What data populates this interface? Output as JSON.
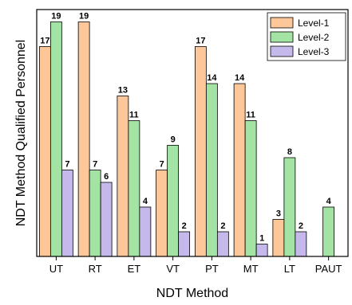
{
  "chart_data": {
    "type": "bar",
    "categories": [
      "UT",
      "RT",
      "ET",
      "VT",
      "PT",
      "MT",
      "LT",
      "PAUT"
    ],
    "series": [
      {
        "name": "Level-1",
        "color": "#fdc79a",
        "values": [
          17,
          19,
          13,
          7,
          17,
          14,
          3,
          null
        ]
      },
      {
        "name": "Level-2",
        "color": "#a3e3a3",
        "values": [
          19,
          7,
          11,
          9,
          14,
          11,
          8,
          4
        ]
      },
      {
        "name": "Level-3",
        "color": "#c4b9ea",
        "values": [
          7,
          6,
          4,
          2,
          2,
          1,
          2,
          null
        ]
      }
    ],
    "xlabel": "NDT Method",
    "ylabel": "NDT Method Qualified Personnel",
    "ylim": [
      0,
      20
    ],
    "grid": false,
    "legend_position": "top-right"
  }
}
